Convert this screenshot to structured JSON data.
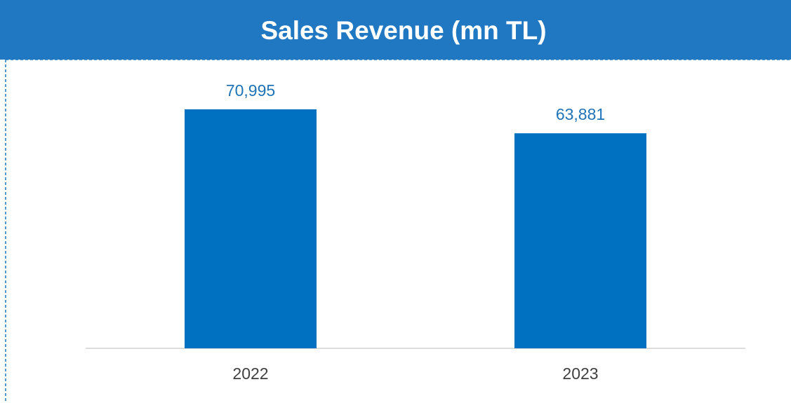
{
  "chart_data": {
    "type": "bar",
    "title": "Sales Revenue (mn TL)",
    "categories": [
      "2022",
      "2023"
    ],
    "values": [
      70995,
      63881
    ],
    "value_labels": [
      "70,995",
      "63,881"
    ],
    "color": "#0070c0"
  }
}
